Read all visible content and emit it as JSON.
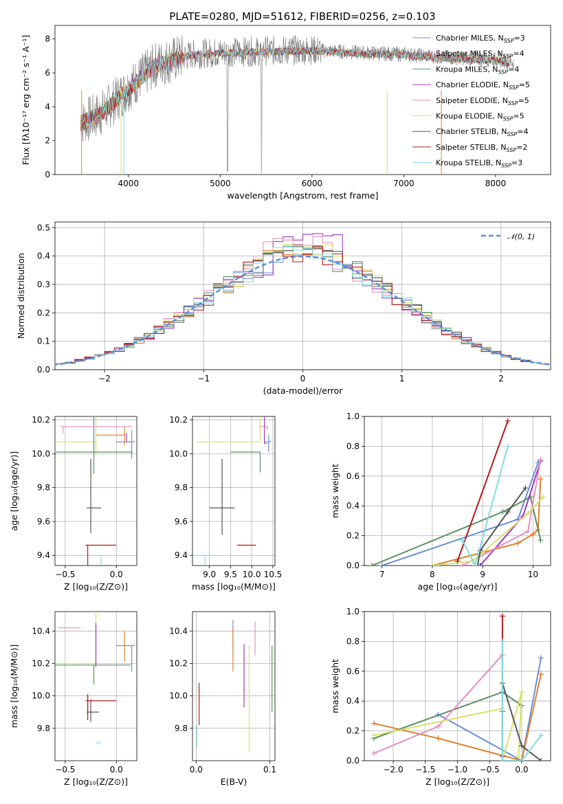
{
  "figure": {
    "title": "PLATE=0280, MJD=51612, FIBERID=0256, z=0.103"
  },
  "colors": [
    "#6a8fd8",
    "#e0802c",
    "#5a8f63",
    "#9b3bbf",
    "#e78fbf",
    "#d8e36b",
    "#555555",
    "#b11a1a",
    "#80dde0"
  ],
  "chart_data": [
    {
      "id": "spectrum",
      "type": "line",
      "xlabel": "wavelength [Angstrom, rest frame]",
      "ylabel": "Flux [fλ10⁻¹⁷ erg cm⁻² s⁻¹ A⁻¹]",
      "xlim": [
        3200,
        8600
      ],
      "ylim": [
        0,
        8.8
      ],
      "xticks": [
        "4000",
        "5000",
        "6000",
        "7000",
        "8000"
      ],
      "yticks": [
        "0",
        "2",
        "4",
        "6",
        "8"
      ],
      "legend_position": "upper-right",
      "series": [
        {
          "name": "Chabrier MILES, N",
          "sub": "SSP",
          "suffix": "=3"
        },
        {
          "name": "Salpeter MILES, N",
          "sub": "SSP",
          "suffix": "=4"
        },
        {
          "name": "Kroupa MILES, N",
          "sub": "SSP",
          "suffix": "=4"
        },
        {
          "name": "Chabrier ELODIE, N",
          "sub": "SSP",
          "suffix": "=5"
        },
        {
          "name": "Salpeter ELODIE, N",
          "sub": "SSP",
          "suffix": "=5"
        },
        {
          "name": "Kroupa ELODIE, N",
          "sub": "SSP",
          "suffix": "=5"
        },
        {
          "name": "Chabrier STELIB, N",
          "sub": "SSP",
          "suffix": "=4"
        },
        {
          "name": "Salpeter STELIB, N",
          "sub": "SSP",
          "suffix": "=2"
        },
        {
          "name": "Kroupa STELIB, N",
          "sub": "SSP",
          "suffix": "=3"
        }
      ],
      "continuum": {
        "x": [
          3500,
          3700,
          4000,
          4300,
          4700,
          5000,
          5500,
          6000,
          6500,
          7000,
          7500,
          8000,
          8200
        ],
        "y": [
          3.1,
          3.6,
          5.1,
          6.5,
          7.1,
          7.2,
          7.3,
          7.35,
          7.2,
          7.1,
          6.9,
          6.8,
          6.6
        ]
      }
    },
    {
      "id": "residuals",
      "type": "histogram",
      "xlabel": "(data-model)/error",
      "ylabel": "Normed distribution",
      "xlim": [
        -2.5,
        2.5
      ],
      "ylim": [
        0,
        0.52
      ],
      "xticks": [
        "−2",
        "−1",
        "0",
        "1",
        "2"
      ],
      "yticks": [
        "0.0",
        "0.1",
        "0.2",
        "0.3",
        "0.4",
        "0.5"
      ],
      "bin_width": 0.1,
      "gaussian_label": "𝒩(0, 1)",
      "legend_position": "upper-right",
      "peak_values": [
        0.41,
        0.43,
        0.44,
        0.49,
        0.47,
        0.45,
        0.42,
        0.4,
        0.43
      ]
    },
    {
      "id": "age-vs-Z",
      "type": "errorbar",
      "xlabel": "Z [log₁₀(Z/Z⊙)]",
      "ylabel": "age  [log₁₀(age/yr)]",
      "xlim": [
        -0.6,
        0.2
      ],
      "ylim": [
        9.34,
        10.22
      ],
      "xticks": [
        {
          "v": -0.5,
          "t": "−0.5"
        },
        {
          "v": 0.0,
          "t": "0.0"
        }
      ],
      "yticks": [
        {
          "v": 9.4,
          "t": "9.4"
        },
        {
          "v": 9.6,
          "t": "9.6"
        },
        {
          "v": 9.8,
          "t": "9.8"
        },
        {
          "v": 10.0,
          "t": "10.0"
        },
        {
          "v": 10.2,
          "t": "10.2"
        }
      ],
      "points": [
        {
          "x": 0.15,
          "y": 10.07,
          "xerr": [
            0.15,
            0.03
          ],
          "yerr": [
            0.07,
            0.1
          ],
          "c": 0
        },
        {
          "x": 0.08,
          "y": 10.11,
          "xerr": [
            0.28,
            0.0
          ],
          "yerr": [
            0.05,
            0.06
          ],
          "c": 1
        },
        {
          "x": -0.2,
          "y": 10.07,
          "xerr": [
            0.5,
            0.0
          ],
          "yerr": [
            0.4,
            0.07
          ],
          "c": 5
        },
        {
          "x": -0.22,
          "y": 10.01,
          "xerr": [
            0.37,
            0.38
          ],
          "yerr": [
            0.27,
            0.13
          ],
          "c": 2
        },
        {
          "x": 0.15,
          "y": 10.16,
          "xerr": [
            0.7,
            0.0
          ],
          "yerr": [
            0.0,
            0.0
          ],
          "c": 4
        },
        {
          "x": 0.1,
          "y": 10.07,
          "xerr": [
            0.0,
            0.0
          ],
          "yerr": [
            0.05,
            0.0
          ],
          "c": 3
        },
        {
          "x": -0.25,
          "y": 9.68,
          "xerr": [
            0.04,
            0.1
          ],
          "yerr": [
            0.29,
            0.15
          ],
          "c": 6
        },
        {
          "x": -0.28,
          "y": 9.46,
          "xerr": [
            0.02,
            0.28
          ],
          "yerr": [
            0.0,
            0.36
          ],
          "c": 7
        },
        {
          "x": -0.15,
          "y": 9.4,
          "xerr": [
            0.05,
            0.0
          ],
          "yerr": [
            0.0,
            0.25
          ],
          "c": 8
        },
        {
          "x": -0.52,
          "y": 10.16,
          "xerr": [
            0.0,
            0.0
          ],
          "yerr": [
            0.0,
            0.04
          ],
          "c": 4
        }
      ]
    },
    {
      "id": "age-vs-mass",
      "type": "errorbar",
      "xlabel": "mass [log₁₀(M/M⊙)]",
      "ylabel": "",
      "xlim": [
        8.6,
        10.55
      ],
      "ylim": [
        9.34,
        10.22
      ],
      "xticks": [
        {
          "v": 9.0,
          "t": "9.0"
        },
        {
          "v": 9.5,
          "t": "9.5"
        },
        {
          "v": 10.0,
          "t": "10.0"
        },
        {
          "v": 10.5,
          "t": "10.5"
        }
      ],
      "yticks": [
        {
          "v": 9.4,
          "t": "9.4"
        },
        {
          "v": 9.6,
          "t": "9.6"
        },
        {
          "v": 9.8,
          "t": "9.8"
        },
        {
          "v": 10.0,
          "t": "10.0"
        },
        {
          "v": 10.2,
          "t": "10.2"
        }
      ],
      "points": [
        {
          "x": 10.4,
          "y": 10.07,
          "xerr": [
            0.1,
            0.05
          ],
          "yerr": [
            0.04,
            0.06
          ],
          "c": 0
        },
        {
          "x": 10.2,
          "y": 10.12,
          "xerr": [
            0.0,
            0.0
          ],
          "yerr": [
            0.06,
            0.0
          ],
          "c": 1
        },
        {
          "x": 10.2,
          "y": 10.07,
          "xerr": [
            1.5,
            0.0
          ],
          "yerr": [
            0.32,
            0.0
          ],
          "c": 5
        },
        {
          "x": 10.2,
          "y": 10.01,
          "xerr": [
            0.7,
            0.0
          ],
          "yerr": [
            0.0,
            0.12
          ],
          "c": 2
        },
        {
          "x": 10.38,
          "y": 10.16,
          "xerr": [
            0.18,
            0.0
          ],
          "yerr": [
            0.0,
            0.02
          ],
          "c": 4
        },
        {
          "x": 10.3,
          "y": 10.06,
          "xerr": [
            0.0,
            0.05
          ],
          "yerr": [
            0.26,
            0.0
          ],
          "c": 3
        },
        {
          "x": 9.3,
          "y": 9.68,
          "xerr": [
            0.3,
            0.3
          ],
          "yerr": [
            0.29,
            0.16
          ],
          "c": 6
        },
        {
          "x": 9.8,
          "y": 9.46,
          "xerr": [
            0.15,
            0.3
          ],
          "yerr": [
            0.0,
            0.0
          ],
          "c": 7
        },
        {
          "x": 8.9,
          "y": 9.4,
          "xerr": [
            0.2,
            0.3
          ],
          "yerr": [
            0.0,
            0.6
          ],
          "c": 8
        }
      ]
    },
    {
      "id": "weight-vs-age",
      "type": "line",
      "xlabel": "age  [log₁₀(age/yr)]",
      "ylabel": "mass weight",
      "xlim": [
        6.65,
        10.35
      ],
      "ylim": [
        0,
        1.0
      ],
      "xticks": [
        {
          "v": 7,
          "t": "7"
        },
        {
          "v": 8,
          "t": "8"
        },
        {
          "v": 9,
          "t": "9"
        },
        {
          "v": 10,
          "t": "10"
        }
      ],
      "yticks": [
        {
          "v": 0.0,
          "t": "0.0"
        },
        {
          "v": 0.2,
          "t": "0.2"
        },
        {
          "v": 0.4,
          "t": "0.4"
        },
        {
          "v": 0.6,
          "t": "0.6"
        },
        {
          "v": 0.8,
          "t": "0.8"
        },
        {
          "v": 1.0,
          "t": "1.0"
        }
      ],
      "series": [
        {
          "c": 0,
          "x": [
            7.0,
            9.7,
            10.1
          ],
          "y": [
            0.0,
            0.31,
            0.69
          ]
        },
        {
          "c": 1,
          "x": [
            8.0,
            9.7,
            10.0,
            10.1,
            10.15
          ],
          "y": [
            0.0,
            0.15,
            0.21,
            0.24,
            0.58
          ]
        },
        {
          "c": 2,
          "x": [
            6.8,
            9.4,
            9.95,
            10.15
          ],
          "y": [
            0.0,
            0.36,
            0.46,
            0.17
          ]
        },
        {
          "c": 3,
          "x": [
            8.95,
            9.8,
            10.15
          ],
          "y": [
            0.0,
            0.33,
            0.7
          ]
        },
        {
          "c": 4,
          "x": [
            8.6,
            9.9,
            10.15
          ],
          "y": [
            0.0,
            0.23,
            0.71
          ]
        },
        {
          "c": 5,
          "x": [
            8.0,
            8.8,
            9.9,
            10.2
          ],
          "y": [
            0.0,
            0.03,
            0.35,
            0.46
          ]
        },
        {
          "c": 6,
          "x": [
            8.9,
            8.95,
            9.5,
            9.85
          ],
          "y": [
            0.0,
            0.1,
            0.36,
            0.52
          ]
        },
        {
          "c": 7,
          "x": [
            8.5,
            9.5
          ],
          "y": [
            0.03,
            0.97
          ]
        },
        {
          "c": 8,
          "x": [
            8.6,
            8.85,
            9.5
          ],
          "y": [
            0.17,
            0.0,
            0.8
          ]
        }
      ]
    },
    {
      "id": "mass-vs-Z",
      "type": "errorbar",
      "xlabel": "Z [log₁₀(Z/Z⊙)]",
      "ylabel": "mass [log₁₀(M/M⊙)]",
      "xlim": [
        -0.6,
        0.2
      ],
      "ylim": [
        9.6,
        10.52
      ],
      "xticks": [
        {
          "v": -0.5,
          "t": "−0.5"
        },
        {
          "v": 0.0,
          "t": "0.0"
        }
      ],
      "yticks": [
        {
          "v": 9.8,
          "t": "9.8"
        },
        {
          "v": 10.0,
          "t": "10.0"
        },
        {
          "v": 10.2,
          "t": "10.2"
        },
        {
          "v": 10.4,
          "t": "10.4"
        }
      ],
      "points": [
        {
          "x": 0.15,
          "y": 10.31,
          "xerr": [
            0.15,
            0.03
          ],
          "yerr": [
            0.0,
            0.16
          ],
          "c": 0
        },
        {
          "x": 0.08,
          "y": 10.31,
          "xerr": [
            0.0,
            0.0
          ],
          "yerr": [
            0.09,
            0.1
          ],
          "c": 1
        },
        {
          "x": -0.2,
          "y": 10.2,
          "xerr": [
            0.45,
            0.0
          ],
          "yerr": [
            0.55,
            0.0
          ],
          "c": 5
        },
        {
          "x": -0.22,
          "y": 10.19,
          "xerr": [
            0.38,
            0.36
          ],
          "yerr": [
            0.0,
            0.12
          ],
          "c": 2
        },
        {
          "x": -0.35,
          "y": 10.42,
          "xerr": [
            0.22,
            0.0
          ],
          "yerr": [
            0.0,
            0.0
          ],
          "c": 4
        },
        {
          "x": -0.2,
          "y": 10.3,
          "xerr": [
            0.0,
            0.0
          ],
          "yerr": [
            0.15,
            0.12
          ],
          "c": 3
        },
        {
          "x": -0.25,
          "y": 9.9,
          "xerr": [
            0.04,
            0.08
          ],
          "yerr": [
            0.08,
            0.06
          ],
          "c": 6
        },
        {
          "x": -0.28,
          "y": 9.97,
          "xerr": [
            0.02,
            0.28
          ],
          "yerr": [
            0.04,
            0.12
          ],
          "c": 7
        },
        {
          "x": -0.15,
          "y": 9.71,
          "xerr": [
            0.05,
            0.0
          ],
          "yerr": [
            0.0,
            0.0
          ],
          "c": 8
        },
        {
          "x": -0.28,
          "y": 10.0,
          "xerr": [
            0.0,
            0.0
          ],
          "yerr": [
            0.0,
            0.1
          ],
          "c": 7
        }
      ]
    },
    {
      "id": "mass-vs-EBV",
      "type": "errorbar",
      "xlabel": "E(B-V)",
      "ylabel": "",
      "xlim": [
        -0.005,
        0.107
      ],
      "ylim": [
        9.6,
        10.52
      ],
      "xticks": [
        {
          "v": 0.0,
          "t": "0.0"
        },
        {
          "v": 0.1,
          "t": "0.1"
        }
      ],
      "yticks": [
        {
          "v": 9.8,
          "t": "9.8"
        },
        {
          "v": 10.0,
          "t": "10.0"
        },
        {
          "v": 10.2,
          "t": "10.2"
        },
        {
          "v": 10.4,
          "t": "10.4"
        }
      ],
      "vlines": [
        {
          "x": 0.05,
          "y0": 10.28,
          "y1": 10.47,
          "c": 0
        },
        {
          "x": 0.05,
          "y0": 10.15,
          "y1": 10.42,
          "c": 1
        },
        {
          "x": 0.065,
          "y0": 9.93,
          "y1": 10.32,
          "c": 3
        },
        {
          "x": 0.072,
          "y0": 9.65,
          "y1": 10.31,
          "c": 5
        },
        {
          "x": 0.08,
          "y0": 10.25,
          "y1": 10.46,
          "c": 4
        },
        {
          "x": 0.103,
          "y0": 9.9,
          "y1": 10.31,
          "c": 2
        },
        {
          "x": 0.004,
          "y0": 9.82,
          "y1": 10.08,
          "c": 7
        },
        {
          "x": 0.001,
          "y0": 9.68,
          "y1": 9.82,
          "c": 8
        }
      ]
    },
    {
      "id": "weight-vs-Z",
      "type": "line",
      "xlabel": "Z [log₁₀(Z/Z⊙)]",
      "ylabel": "mass weight",
      "xlim": [
        -2.45,
        0.45
      ],
      "ylim": [
        0,
        1.0
      ],
      "xticks": [
        {
          "v": -2.0,
          "t": "−2.0"
        },
        {
          "v": -1.5,
          "t": "−1.5"
        },
        {
          "v": -1.0,
          "t": "−1.0"
        },
        {
          "v": -0.5,
          "t": "−0.5"
        },
        {
          "v": 0.0,
          "t": "0.0"
        }
      ],
      "yticks": [
        {
          "v": 0.0,
          "t": "0.0"
        },
        {
          "v": 0.2,
          "t": "0.2"
        },
        {
          "v": 0.4,
          "t": "0.4"
        },
        {
          "v": 0.6,
          "t": "0.6"
        },
        {
          "v": 0.8,
          "t": "0.8"
        },
        {
          "v": 1.0,
          "t": "1.0"
        }
      ],
      "series": [
        {
          "c": 0,
          "x": [
            -1.3,
            0.0,
            0.3
          ],
          "y": [
            0.31,
            0.0,
            0.69
          ]
        },
        {
          "c": 1,
          "x": [
            -2.3,
            -1.3,
            0.0,
            0.3
          ],
          "y": [
            0.25,
            0.15,
            0.0,
            0.58
          ]
        },
        {
          "c": 2,
          "x": [
            -2.3,
            -0.3,
            0.0
          ],
          "y": [
            0.15,
            0.46,
            0.37
          ]
        },
        {
          "c": 3,
          "x": [
            -0.3,
            -0.3,
            0.0
          ],
          "y": [
            0.33,
            0.0,
            0.0
          ]
        },
        {
          "c": 4,
          "x": [
            -2.3,
            -1.3,
            -0.3,
            -0.3
          ],
          "y": [
            0.05,
            0.23,
            0.71,
            0.0
          ]
        },
        {
          "c": 5,
          "x": [
            -2.3,
            -0.3,
            -0.3,
            0.0,
            -0.05
          ],
          "y": [
            0.17,
            0.35,
            0.0,
            0.46,
            0.03
          ]
        },
        {
          "c": 6,
          "x": [
            -0.3,
            0.0,
            0.3
          ],
          "y": [
            0.52,
            0.1,
            0.0
          ]
        },
        {
          "c": 7,
          "x": [
            -0.3,
            -0.3
          ],
          "y": [
            0.97,
            0.03
          ]
        },
        {
          "c": 8,
          "x": [
            -0.3,
            -0.3,
            0.0,
            0.3
          ],
          "y": [
            0.8,
            0.0,
            0.0,
            0.17
          ]
        }
      ]
    }
  ]
}
